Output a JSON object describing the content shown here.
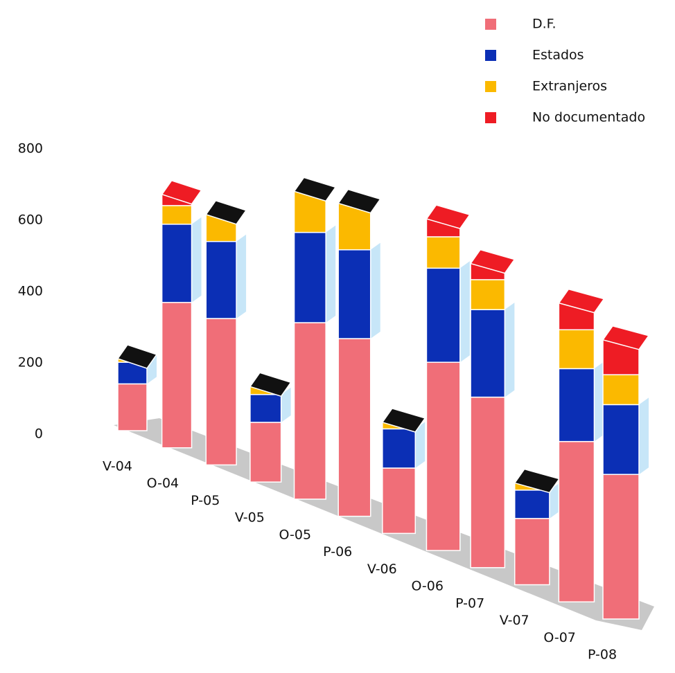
{
  "chart_data": {
    "type": "bar",
    "stacked": true,
    "legend": "top-right",
    "categories": [
      "V-04",
      "O-04",
      "P-05",
      "V-05",
      "O-05",
      "P-06",
      "V-06",
      "O-06",
      "P-07",
      "V-07",
      "O-07",
      "P-08"
    ],
    "series": [
      {
        "name": "D.F.",
        "color": "#f06e78",
        "values": [
          130,
          390,
          380,
          150,
          430,
          420,
          150,
          420,
          370,
          140,
          330,
          290
        ]
      },
      {
        "name": "Estados",
        "color": "#0b2fb5",
        "values": [
          60,
          210,
          200,
          70,
          220,
          210,
          90,
          210,
          190,
          60,
          150,
          140
        ]
      },
      {
        "name": "Extranjeros",
        "color": "#fbb900",
        "values": [
          10,
          50,
          70,
          20,
          100,
          110,
          15,
          70,
          65,
          15,
          80,
          60
        ]
      },
      {
        "name": "No documentado",
        "color": "#ee1c24",
        "values": [
          0,
          30,
          0,
          0,
          0,
          0,
          0,
          40,
          35,
          0,
          55,
          70
        ]
      }
    ],
    "ylim": [
      0,
      800
    ],
    "yticks": [
      0,
      200,
      400,
      600,
      800
    ]
  }
}
